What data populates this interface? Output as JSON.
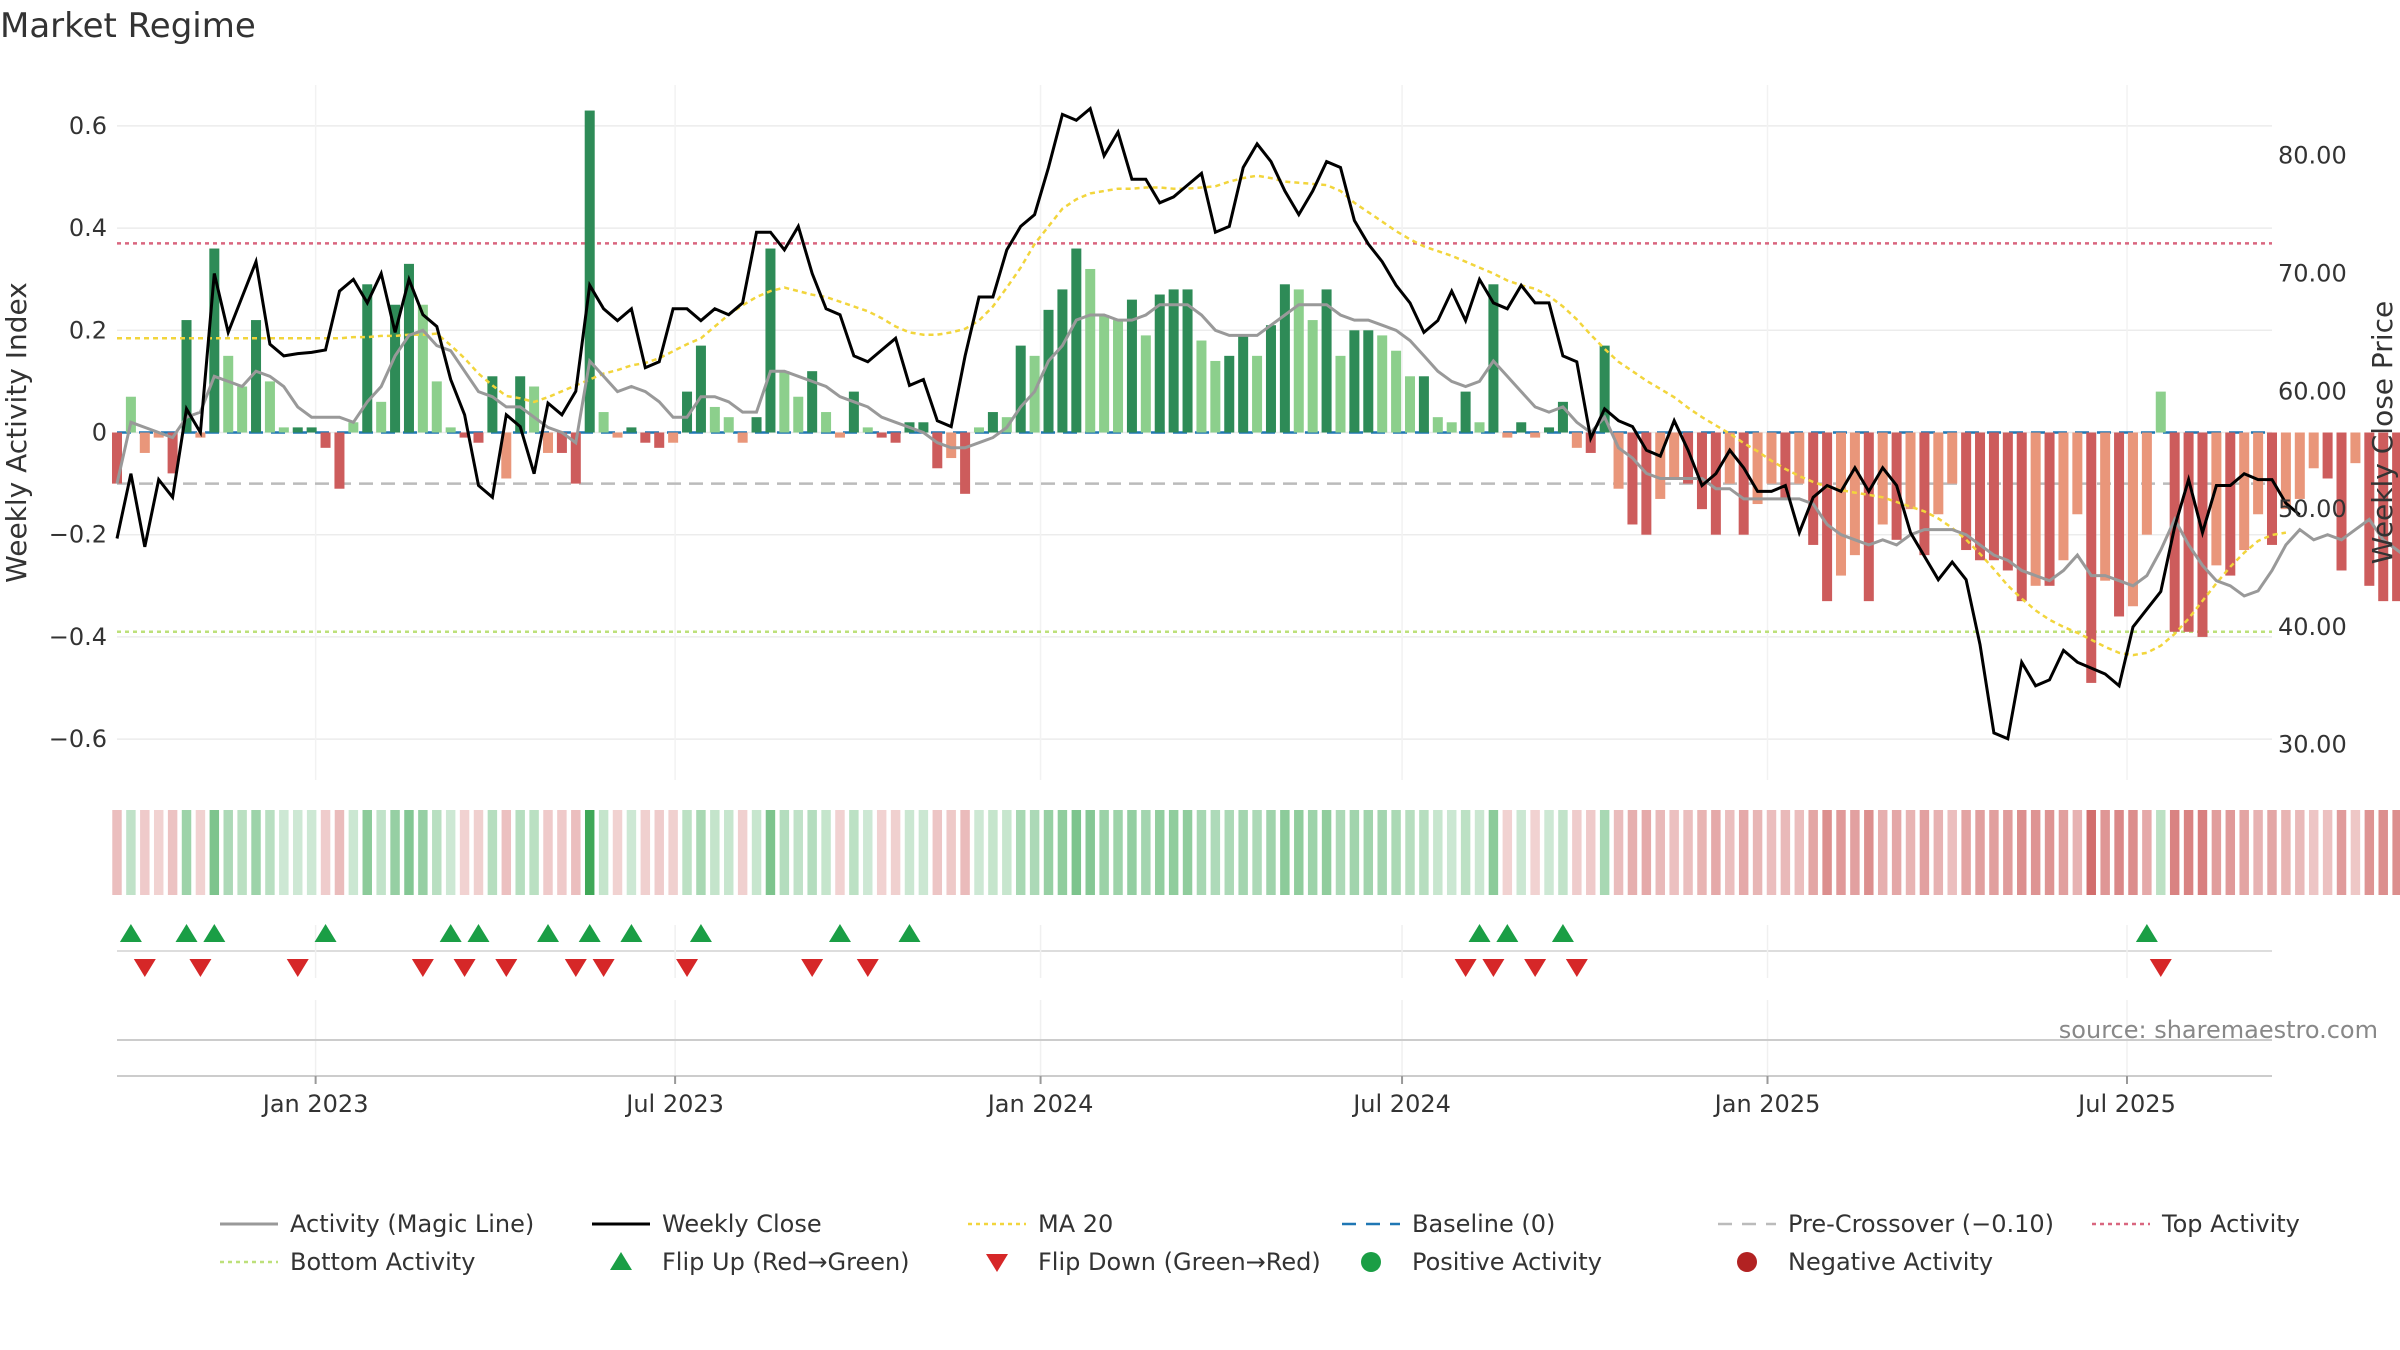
{
  "title": "Market Regime",
  "source": "source: sharemaestro.com",
  "colors": {
    "pos_strong": "#2e8b57",
    "pos_light": "#8ccf8c",
    "neg_strong": "#cd5c5c",
    "neg_light": "#e9967a",
    "close_line": "#000000",
    "magic_line": "#999999",
    "ma_line": "#f2d53c",
    "baseline": "#1f77b4",
    "pre_cross": "#bbbbbb",
    "top_line": "#d9667f",
    "bottom_line": "#bde07a",
    "flip_up": "#1a9e45",
    "flip_down": "#d62728"
  },
  "chart_data": {
    "type": "bar",
    "title": "Market Regime",
    "left_axis": {
      "label": "Weekly Activity Index",
      "min": -0.68,
      "max": 0.68,
      "ticks": [
        -0.6,
        -0.4,
        -0.2,
        0,
        0.2,
        0.4,
        0.6
      ],
      "tick_labels": [
        "−0.6",
        "−0.4",
        "−0.2",
        "0",
        "0.2",
        "0.4",
        "0.6"
      ]
    },
    "right_axis": {
      "label": "Weekly Close Price",
      "min": 27.0,
      "max": 86.0,
      "ticks": [
        30,
        40,
        50,
        60,
        70,
        80
      ],
      "tick_labels": [
        "30.00",
        "40.00",
        "50.00",
        "60.00",
        "70.00",
        "80.00"
      ]
    },
    "x_axis": {
      "start": "2022-09-23",
      "end": "2025-09-12",
      "ticks": [
        {
          "date": "2023-01-01",
          "label": "Jan 2023"
        },
        {
          "date": "2023-07-01",
          "label": "Jul 2023"
        },
        {
          "date": "2024-01-01",
          "label": "Jan 2024"
        },
        {
          "date": "2024-07-01",
          "label": "Jul 2024"
        },
        {
          "date": "2025-01-01",
          "label": "Jan 2025"
        },
        {
          "date": "2025-07-01",
          "label": "Jul 2025"
        }
      ]
    },
    "reference_lines": {
      "top_activity": 0.37,
      "bottom_activity": -0.39,
      "pre_crossover": -0.1,
      "baseline": 0
    },
    "first_week": "2022-09-23",
    "week_step_days": 7,
    "activity": [
      -0.1,
      0.07,
      -0.04,
      -0.01,
      -0.08,
      0.22,
      -0.01,
      0.36,
      0.15,
      0.09,
      0.22,
      0.1,
      0.01,
      0.01,
      0.01,
      -0.03,
      -0.11,
      0.02,
      0.29,
      0.06,
      0.25,
      0.33,
      0.25,
      0.1,
      0.01,
      -0.01,
      -0.02,
      0.11,
      -0.09,
      0.11,
      0.09,
      -0.04,
      -0.04,
      -0.1,
      0.63,
      0.04,
      -0.01,
      0.01,
      -0.02,
      -0.03,
      -0.02,
      0.08,
      0.17,
      0.05,
      0.03,
      -0.02,
      0.03,
      0.36,
      0.12,
      0.07,
      0.12,
      0.04,
      -0.01,
      0.08,
      0.01,
      -0.01,
      -0.02,
      0.02,
      0.02,
      -0.07,
      -0.05,
      -0.12,
      0.01,
      0.04,
      0.03,
      0.17,
      0.15,
      0.24,
      0.28,
      0.36,
      0.32,
      0.23,
      0.22,
      0.26,
      0.19,
      0.27,
      0.28,
      0.28,
      0.18,
      0.14,
      0.15,
      0.19,
      0.15,
      0.21,
      0.29,
      0.28,
      0.22,
      0.28,
      0.15,
      0.2,
      0.2,
      0.19,
      0.16,
      0.11,
      0.11,
      0.03,
      0.02,
      0.08,
      0.02,
      0.29,
      -0.01,
      0.02,
      -0.01,
      0.01,
      0.06,
      -0.03,
      -0.04,
      0.17,
      -0.11,
      -0.18,
      -0.2,
      -0.13,
      -0.09,
      -0.1,
      -0.15,
      -0.2,
      -0.1,
      -0.2,
      -0.14,
      -0.1,
      -0.13,
      -0.1,
      -0.22,
      -0.33,
      -0.28,
      -0.24,
      -0.33,
      -0.18,
      -0.21,
      -0.15,
      -0.24,
      -0.16,
      -0.1,
      -0.23,
      -0.25,
      -0.25,
      -0.27,
      -0.33,
      -0.3,
      -0.3,
      -0.25,
      -0.16,
      -0.49,
      -0.29,
      -0.36,
      -0.34,
      -0.2,
      0.08,
      -0.39,
      -0.39,
      -0.4,
      -0.26,
      -0.28,
      -0.23,
      -0.16,
      -0.22,
      -0.15,
      -0.13,
      -0.07,
      -0.09,
      -0.27,
      -0.06,
      -0.3,
      -0.33,
      -0.33
    ],
    "magic_line": [
      -0.1,
      0.02,
      0.01,
      0.0,
      -0.01,
      0.03,
      0.04,
      0.11,
      0.1,
      0.09,
      0.12,
      0.11,
      0.09,
      0.05,
      0.03,
      0.03,
      0.03,
      0.02,
      0.06,
      0.09,
      0.15,
      0.19,
      0.2,
      0.17,
      0.16,
      0.12,
      0.08,
      0.07,
      0.05,
      0.05,
      0.03,
      0.01,
      0.0,
      -0.02,
      0.14,
      0.11,
      0.08,
      0.09,
      0.08,
      0.06,
      0.03,
      0.03,
      0.07,
      0.07,
      0.06,
      0.04,
      0.04,
      0.12,
      0.12,
      0.11,
      0.1,
      0.09,
      0.07,
      0.06,
      0.05,
      0.03,
      0.02,
      0.01,
      0.0,
      -0.02,
      -0.03,
      -0.03,
      -0.02,
      -0.01,
      0.01,
      0.05,
      0.08,
      0.14,
      0.17,
      0.22,
      0.23,
      0.23,
      0.22,
      0.22,
      0.23,
      0.25,
      0.25,
      0.25,
      0.23,
      0.2,
      0.19,
      0.19,
      0.19,
      0.21,
      0.23,
      0.25,
      0.25,
      0.25,
      0.23,
      0.22,
      0.22,
      0.21,
      0.2,
      0.18,
      0.15,
      0.12,
      0.1,
      0.09,
      0.1,
      0.14,
      0.11,
      0.08,
      0.05,
      0.04,
      0.05,
      0.02,
      0.0,
      0.03,
      -0.03,
      -0.05,
      -0.08,
      -0.09,
      -0.09,
      -0.09,
      -0.09,
      -0.11,
      -0.11,
      -0.13,
      -0.13,
      -0.13,
      -0.13,
      -0.13,
      -0.14,
      -0.18,
      -0.2,
      -0.21,
      -0.22,
      -0.21,
      -0.22,
      -0.2,
      -0.19,
      -0.19,
      -0.19,
      -0.2,
      -0.22,
      -0.24,
      -0.25,
      -0.27,
      -0.28,
      -0.29,
      -0.27,
      -0.24,
      -0.28,
      -0.28,
      -0.29,
      -0.3,
      -0.28,
      -0.23,
      -0.17,
      -0.22,
      -0.26,
      -0.29,
      -0.3,
      -0.32,
      -0.31,
      -0.27,
      -0.22,
      -0.19,
      -0.21,
      -0.2,
      -0.21,
      -0.19,
      -0.17,
      -0.21,
      -0.23,
      -0.25
    ],
    "weekly_close": [
      47.5,
      53.0,
      46.8,
      52.5,
      51.0,
      58.5,
      56.5,
      70.0,
      65.0,
      68.0,
      71.0,
      64.0,
      63.0,
      63.2,
      63.3,
      63.5,
      68.5,
      69.5,
      67.5,
      70.0,
      65.0,
      69.5,
      66.5,
      65.5,
      61.0,
      58.0,
      52.0,
      51.0,
      58.0,
      57.0,
      53.0,
      59.0,
      58.0,
      60.0,
      69.0,
      67.0,
      66.0,
      67.0,
      62.0,
      62.5,
      67.0,
      67.0,
      66.0,
      67.0,
      66.5,
      67.5,
      73.5,
      73.5,
      72.0,
      74.0,
      70.0,
      67.0,
      66.5,
      63.0,
      62.5,
      63.5,
      64.5,
      60.5,
      61.0,
      57.5,
      57.0,
      63.0,
      68.0,
      68.0,
      72.0,
      74.0,
      75.0,
      79.0,
      83.5,
      83.0,
      84.0,
      80.0,
      82.0,
      78.0,
      78.0,
      76.0,
      76.5,
      77.5,
      78.5,
      73.5,
      74.0,
      79.0,
      81.0,
      79.5,
      77.0,
      75.0,
      77.0,
      79.5,
      79.0,
      74.5,
      72.5,
      71.0,
      69.0,
      67.5,
      65.0,
      66.0,
      68.5,
      66.0,
      69.5,
      67.5,
      67.0,
      69.0,
      67.5,
      67.5,
      63.0,
      62.5,
      56.0,
      58.5,
      57.5,
      57.0,
      55.0,
      54.5,
      57.5,
      55.0,
      52.0,
      53.0,
      55.0,
      53.5,
      51.5,
      51.5,
      52.0,
      48.0,
      51.0,
      52.0,
      51.5,
      53.5,
      51.5,
      53.5,
      52.0,
      48.0,
      46.0,
      44.0,
      45.5,
      44.0,
      38.5,
      31.0,
      30.5,
      37.0,
      35.0,
      35.5,
      38.0,
      37.0,
      36.5,
      36.0,
      35.0,
      40.0,
      41.5,
      43.0,
      48.5,
      52.5,
      48.0,
      52.0,
      52.0,
      53.0,
      52.5,
      52.5,
      50.5,
      49.5
    ],
    "ma20": [
      64.5,
      64.5,
      64.5,
      64.5,
      64.5,
      64.5,
      64.5,
      64.5,
      64.5,
      64.5,
      64.5,
      64.5,
      64.5,
      64.5,
      64.5,
      64.5,
      64.5,
      64.6,
      64.6,
      64.7,
      64.7,
      64.8,
      64.8,
      64.9,
      63.9,
      62.8,
      61.5,
      60.5,
      59.6,
      59.4,
      59.1,
      59.5,
      60.0,
      60.5,
      61.0,
      61.5,
      61.8,
      62.2,
      62.4,
      62.8,
      63.4,
      64.0,
      64.5,
      65.5,
      66.5,
      67.3,
      68.0,
      68.5,
      68.8,
      68.5,
      68.2,
      68.0,
      67.6,
      67.2,
      66.8,
      66.2,
      65.5,
      65.0,
      64.8,
      64.8,
      65.0,
      65.3,
      66.0,
      67.2,
      68.8,
      70.5,
      72.5,
      74.0,
      75.5,
      76.3,
      76.8,
      77.0,
      77.2,
      77.2,
      77.3,
      77.3,
      77.2,
      77.2,
      77.3,
      77.4,
      77.8,
      78.1,
      78.3,
      78.1,
      77.8,
      77.7,
      77.6,
      77.5,
      77.0,
      76.0,
      75.2,
      74.4,
      73.6,
      72.9,
      72.3,
      71.9,
      71.5,
      71.0,
      70.5,
      70.0,
      69.4,
      69.0,
      68.7,
      68.1,
      67.2,
      66.1,
      64.8,
      63.6,
      62.5,
      61.7,
      60.9,
      60.2,
      59.5,
      58.6,
      57.8,
      57.1,
      56.4,
      55.6,
      54.9,
      54.1,
      53.4,
      52.8,
      52.3,
      51.9,
      51.6,
      51.4,
      51.2,
      51.0,
      50.6,
      50.2,
      49.8,
      49.2,
      48.4,
      47.4,
      46.2,
      44.9,
      43.5,
      42.4,
      41.4,
      40.6,
      40.0,
      39.5,
      38.9,
      38.3,
      37.8,
      37.6,
      37.8,
      38.4,
      39.4,
      40.7,
      42.2,
      43.7,
      45.1,
      46.3,
      47.3,
      47.8,
      48.0
    ]
  },
  "signal_markers": {
    "flip_up_weeks": [
      1,
      5,
      7,
      15,
      24,
      26,
      31,
      34,
      37,
      42,
      52,
      57,
      98,
      100,
      104,
      146
    ],
    "flip_down_weeks": [
      2,
      6,
      13,
      22,
      25,
      28,
      33,
      35,
      41,
      50,
      54,
      97,
      99,
      102,
      105,
      147
    ]
  },
  "legend": {
    "items": [
      {
        "label": "Activity (Magic Line)",
        "kind": "line",
        "color": "#999999"
      },
      {
        "label": "Weekly Close",
        "kind": "line",
        "color": "#000000"
      },
      {
        "label": "MA 20",
        "kind": "dotted",
        "color": "#f2d53c"
      },
      {
        "label": "Baseline (0)",
        "kind": "dashed",
        "color": "#1f77b4"
      },
      {
        "label": "Pre-Crossover (−0.10)",
        "kind": "dashed",
        "color": "#bbbbbb"
      },
      {
        "label": "Top Activity",
        "kind": "dotted",
        "color": "#d9667f"
      },
      {
        "label": "Bottom Activity",
        "kind": "dotted",
        "color": "#bde07a"
      },
      {
        "label": "Flip Up (Red→Green)",
        "kind": "triangle-up",
        "color": "#1a9e45"
      },
      {
        "label": "Flip Down (Green→Red)",
        "kind": "triangle-down",
        "color": "#d62728"
      },
      {
        "label": "Positive Activity",
        "kind": "dot",
        "color": "#1a9e45"
      },
      {
        "label": "Negative Activity",
        "kind": "dot",
        "color": "#b22222"
      }
    ]
  }
}
